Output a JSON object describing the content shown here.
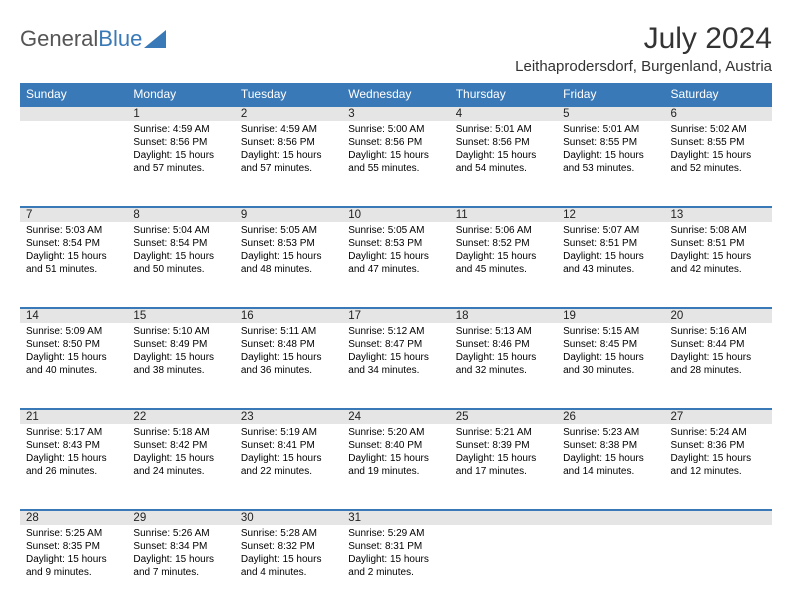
{
  "logo": {
    "first": "General",
    "second": "Blue"
  },
  "title": "July 2024",
  "location": "Leithaprodersdorf, Burgenland, Austria",
  "colors": {
    "header_bg": "#3a79b7",
    "header_text": "#ffffff",
    "daynum_bg": "#e5e5e5",
    "border": "#3a79b7",
    "text": "#000000"
  },
  "days_of_week": [
    "Sunday",
    "Monday",
    "Tuesday",
    "Wednesday",
    "Thursday",
    "Friday",
    "Saturday"
  ],
  "weeks": [
    [
      null,
      {
        "n": "1",
        "sr": "4:59 AM",
        "ss": "8:56 PM",
        "dl": "15 hours and 57 minutes."
      },
      {
        "n": "2",
        "sr": "4:59 AM",
        "ss": "8:56 PM",
        "dl": "15 hours and 57 minutes."
      },
      {
        "n": "3",
        "sr": "5:00 AM",
        "ss": "8:56 PM",
        "dl": "15 hours and 55 minutes."
      },
      {
        "n": "4",
        "sr": "5:01 AM",
        "ss": "8:56 PM",
        "dl": "15 hours and 54 minutes."
      },
      {
        "n": "5",
        "sr": "5:01 AM",
        "ss": "8:55 PM",
        "dl": "15 hours and 53 minutes."
      },
      {
        "n": "6",
        "sr": "5:02 AM",
        "ss": "8:55 PM",
        "dl": "15 hours and 52 minutes."
      }
    ],
    [
      {
        "n": "7",
        "sr": "5:03 AM",
        "ss": "8:54 PM",
        "dl": "15 hours and 51 minutes."
      },
      {
        "n": "8",
        "sr": "5:04 AM",
        "ss": "8:54 PM",
        "dl": "15 hours and 50 minutes."
      },
      {
        "n": "9",
        "sr": "5:05 AM",
        "ss": "8:53 PM",
        "dl": "15 hours and 48 minutes."
      },
      {
        "n": "10",
        "sr": "5:05 AM",
        "ss": "8:53 PM",
        "dl": "15 hours and 47 minutes."
      },
      {
        "n": "11",
        "sr": "5:06 AM",
        "ss": "8:52 PM",
        "dl": "15 hours and 45 minutes."
      },
      {
        "n": "12",
        "sr": "5:07 AM",
        "ss": "8:51 PM",
        "dl": "15 hours and 43 minutes."
      },
      {
        "n": "13",
        "sr": "5:08 AM",
        "ss": "8:51 PM",
        "dl": "15 hours and 42 minutes."
      }
    ],
    [
      {
        "n": "14",
        "sr": "5:09 AM",
        "ss": "8:50 PM",
        "dl": "15 hours and 40 minutes."
      },
      {
        "n": "15",
        "sr": "5:10 AM",
        "ss": "8:49 PM",
        "dl": "15 hours and 38 minutes."
      },
      {
        "n": "16",
        "sr": "5:11 AM",
        "ss": "8:48 PM",
        "dl": "15 hours and 36 minutes."
      },
      {
        "n": "17",
        "sr": "5:12 AM",
        "ss": "8:47 PM",
        "dl": "15 hours and 34 minutes."
      },
      {
        "n": "18",
        "sr": "5:13 AM",
        "ss": "8:46 PM",
        "dl": "15 hours and 32 minutes."
      },
      {
        "n": "19",
        "sr": "5:15 AM",
        "ss": "8:45 PM",
        "dl": "15 hours and 30 minutes."
      },
      {
        "n": "20",
        "sr": "5:16 AM",
        "ss": "8:44 PM",
        "dl": "15 hours and 28 minutes."
      }
    ],
    [
      {
        "n": "21",
        "sr": "5:17 AM",
        "ss": "8:43 PM",
        "dl": "15 hours and 26 minutes."
      },
      {
        "n": "22",
        "sr": "5:18 AM",
        "ss": "8:42 PM",
        "dl": "15 hours and 24 minutes."
      },
      {
        "n": "23",
        "sr": "5:19 AM",
        "ss": "8:41 PM",
        "dl": "15 hours and 22 minutes."
      },
      {
        "n": "24",
        "sr": "5:20 AM",
        "ss": "8:40 PM",
        "dl": "15 hours and 19 minutes."
      },
      {
        "n": "25",
        "sr": "5:21 AM",
        "ss": "8:39 PM",
        "dl": "15 hours and 17 minutes."
      },
      {
        "n": "26",
        "sr": "5:23 AM",
        "ss": "8:38 PM",
        "dl": "15 hours and 14 minutes."
      },
      {
        "n": "27",
        "sr": "5:24 AM",
        "ss": "8:36 PM",
        "dl": "15 hours and 12 minutes."
      }
    ],
    [
      {
        "n": "28",
        "sr": "5:25 AM",
        "ss": "8:35 PM",
        "dl": "15 hours and 9 minutes."
      },
      {
        "n": "29",
        "sr": "5:26 AM",
        "ss": "8:34 PM",
        "dl": "15 hours and 7 minutes."
      },
      {
        "n": "30",
        "sr": "5:28 AM",
        "ss": "8:32 PM",
        "dl": "15 hours and 4 minutes."
      },
      {
        "n": "31",
        "sr": "5:29 AM",
        "ss": "8:31 PM",
        "dl": "15 hours and 2 minutes."
      },
      null,
      null,
      null
    ]
  ],
  "labels": {
    "sunrise": "Sunrise:",
    "sunset": "Sunset:",
    "daylight": "Daylight:"
  }
}
